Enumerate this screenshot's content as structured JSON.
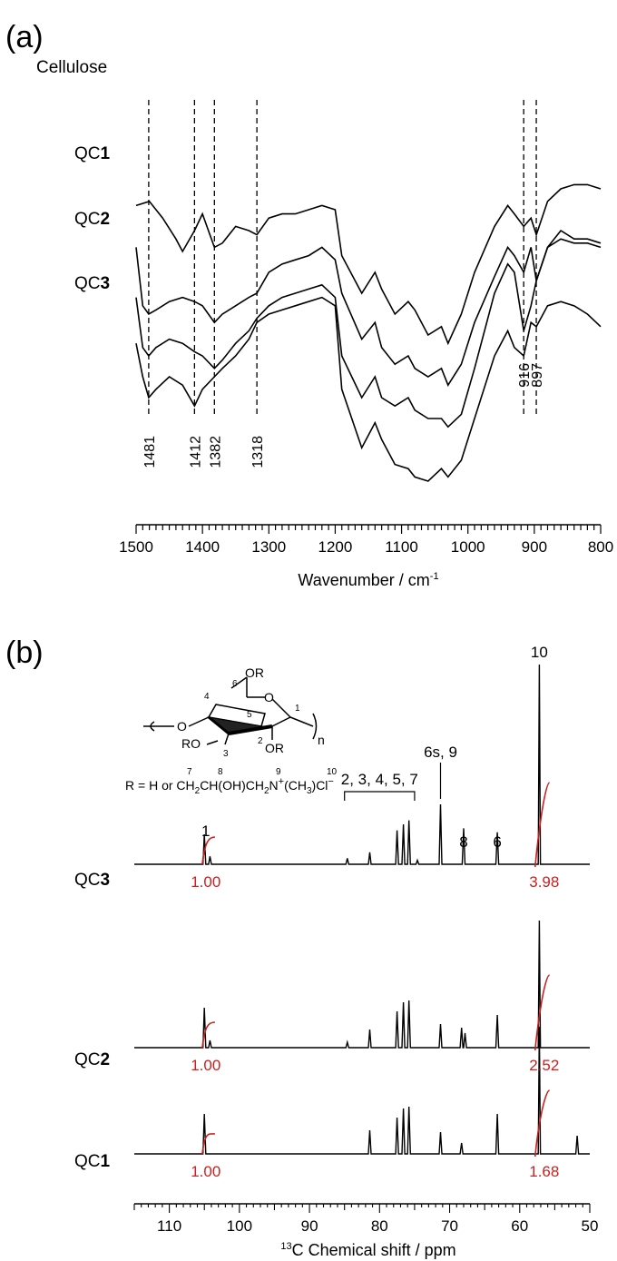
{
  "panel_a": {
    "label": "(a)",
    "traces": [
      {
        "prefix": "Cellulose",
        "suffix": ""
      },
      {
        "prefix": "QC",
        "suffix": "1"
      },
      {
        "prefix": "QC",
        "suffix": "2"
      },
      {
        "prefix": "QC",
        "suffix": "3"
      }
    ],
    "xlabel": "Wavenumber / cm",
    "xlabel_sup": "-1"
  },
  "panel_b": {
    "label": "(b)",
    "structure": {
      "ring_labels": [
        "1",
        "2",
        "3",
        "4",
        "5",
        "6"
      ],
      "or_top": "OR",
      "ro_left": "RO",
      "or_bottom": "OR",
      "n": "n",
      "r_def_prefix": "R = H or CH",
      "r_def_sub1": "2",
      "r_def_mid": "CH(OH)CH",
      "r_def_sub2": "2",
      "r_def_n": "N",
      "r_def_plus": "+",
      "r_def_paren": "(CH",
      "r_def_sub3": "3",
      "r_def_cl": ")Cl",
      "r_def_minus": "−",
      "num_labels": [
        "7",
        "8",
        "9",
        "10"
      ]
    },
    "traces": [
      {
        "prefix": "QC",
        "suffix": "3"
      },
      {
        "prefix": "QC",
        "suffix": "2"
      },
      {
        "prefix": "QC",
        "suffix": "1"
      }
    ],
    "xlabel_sup": "13",
    "xlabel": "C Chemical shift / ppm"
  },
  "colors": {
    "line": "#000000",
    "integral": "#cc1f1f"
  },
  "chart_data": [
    {
      "type": "line",
      "title": "(a)",
      "xlabel": "Wavenumber / cm-1",
      "ylabel": "",
      "xlim": [
        1500,
        800
      ],
      "x_reversed": true,
      "xticks": [
        1500,
        1400,
        1300,
        1200,
        1100,
        1000,
        900,
        800
      ],
      "grid": false,
      "series": [
        {
          "name": "Cellulose",
          "x": [
            1500,
            1480,
            1460,
            1440,
            1430,
            1412,
            1400,
            1382,
            1370,
            1350,
            1330,
            1318,
            1300,
            1280,
            1260,
            1240,
            1220,
            1200,
            1190,
            1160,
            1140,
            1130,
            1110,
            1090,
            1080,
            1060,
            1040,
            1030,
            1010,
            990,
            960,
            940,
            930,
            916,
            905,
            897,
            880,
            860,
            840,
            820,
            800
          ],
          "y": [
            96,
            97,
            93,
            88,
            85,
            90,
            94,
            86,
            87,
            91,
            90,
            89,
            93,
            94,
            94,
            95,
            96,
            95,
            84,
            75,
            80,
            76,
            70,
            73,
            71,
            65,
            67,
            63,
            70,
            80,
            91,
            96,
            94,
            91,
            93,
            89,
            97,
            100,
            101,
            101,
            100
          ]
        },
        {
          "name": "QC1",
          "x": [
            1500,
            1490,
            1481,
            1470,
            1450,
            1430,
            1412,
            1400,
            1382,
            1370,
            1350,
            1330,
            1318,
            1300,
            1280,
            1260,
            1240,
            1220,
            1200,
            1190,
            1160,
            1140,
            1130,
            1110,
            1090,
            1080,
            1060,
            1040,
            1030,
            1010,
            990,
            960,
            940,
            930,
            916,
            905,
            897,
            880,
            860,
            840,
            820,
            800
          ],
          "y": [
            86,
            72,
            70,
            71,
            73,
            74,
            73,
            72,
            68,
            70,
            72,
            74,
            75,
            80,
            82,
            83,
            84,
            86,
            83,
            75,
            64,
            68,
            62,
            58,
            60,
            57,
            55,
            57,
            53,
            58,
            68,
            79,
            86,
            84,
            80,
            86,
            78,
            86,
            90,
            88,
            88,
            87
          ]
        },
        {
          "name": "QC2",
          "x": [
            1500,
            1490,
            1481,
            1470,
            1450,
            1430,
            1412,
            1400,
            1382,
            1370,
            1350,
            1330,
            1318,
            1300,
            1280,
            1260,
            1240,
            1220,
            1200,
            1190,
            1160,
            1140,
            1130,
            1110,
            1090,
            1080,
            1060,
            1040,
            1030,
            1010,
            990,
            960,
            940,
            930,
            916,
            905,
            897,
            880,
            860,
            840,
            820,
            800
          ],
          "y": [
            74,
            62,
            60,
            62,
            64,
            63,
            61,
            60,
            57,
            59,
            63,
            66,
            69,
            72,
            74,
            75,
            76,
            77,
            74,
            60,
            50,
            55,
            50,
            48,
            50,
            47,
            45,
            45,
            43,
            46,
            57,
            75,
            82,
            80,
            66,
            72,
            78,
            86,
            88,
            87,
            87,
            86
          ]
        },
        {
          "name": "QC3",
          "x": [
            1500,
            1490,
            1481,
            1470,
            1450,
            1430,
            1412,
            1400,
            1382,
            1370,
            1350,
            1330,
            1318,
            1300,
            1280,
            1260,
            1240,
            1220,
            1200,
            1190,
            1160,
            1140,
            1130,
            1110,
            1090,
            1080,
            1060,
            1040,
            1030,
            1010,
            990,
            960,
            940,
            930,
            916,
            905,
            897,
            880,
            860,
            840,
            820,
            800
          ],
          "y": [
            63,
            55,
            50,
            52,
            55,
            53,
            48,
            52,
            55,
            57,
            60,
            64,
            68,
            70,
            71,
            72,
            73,
            74,
            72,
            52,
            38,
            44,
            40,
            34,
            33,
            31,
            30,
            33,
            31,
            35,
            45,
            60,
            66,
            62,
            60,
            68,
            67,
            72,
            73,
            72,
            70,
            67
          ]
        }
      ],
      "annotations": [
        "1481",
        "1412",
        "1382",
        "1318",
        "916",
        "897"
      ]
    },
    {
      "type": "line",
      "title": "(b)",
      "xlabel": "13C Chemical shift / ppm",
      "ylabel": "",
      "xlim": [
        115,
        50
      ],
      "x_reversed": true,
      "xticks": [
        110,
        100,
        90,
        80,
        70,
        60,
        50
      ],
      "grid": false,
      "series": [
        {
          "name": "QC3",
          "x": [
            105,
            104.2,
            84.6,
            81.4,
            77.5,
            76.6,
            75.8,
            74.6,
            71.3,
            68,
            63.2,
            57.2
          ],
          "y": [
            15,
            4,
            3,
            6,
            17,
            20,
            22,
            2,
            30,
            18,
            16,
            100
          ]
        },
        {
          "name": "QC2",
          "x": [
            105,
            104.2,
            84.6,
            81.4,
            77.5,
            76.6,
            75.8,
            71.3,
            68.3,
            67.8,
            63.2,
            57.2
          ],
          "y": [
            22,
            4,
            3,
            10,
            20,
            25,
            26,
            13,
            11,
            8,
            18,
            70
          ]
        },
        {
          "name": "QC1",
          "x": [
            105,
            81.4,
            77.5,
            76.6,
            75.8,
            71.3,
            68.3,
            63.2,
            57.2,
            51.8
          ],
          "y": [
            22,
            13,
            20,
            25,
            26,
            12,
            6,
            22,
            70,
            10
          ]
        }
      ],
      "peak_labels": [
        "1",
        "2, 3, 4, 5, 7",
        "6s, 9",
        "8",
        "6",
        "10"
      ],
      "integrals": [
        {
          "series": "QC3",
          "values": [
            "1.00",
            "3.98"
          ]
        },
        {
          "series": "QC2",
          "values": [
            "1.00",
            "2.52"
          ]
        },
        {
          "series": "QC1",
          "values": [
            "1.00",
            "1.68"
          ]
        }
      ]
    }
  ]
}
